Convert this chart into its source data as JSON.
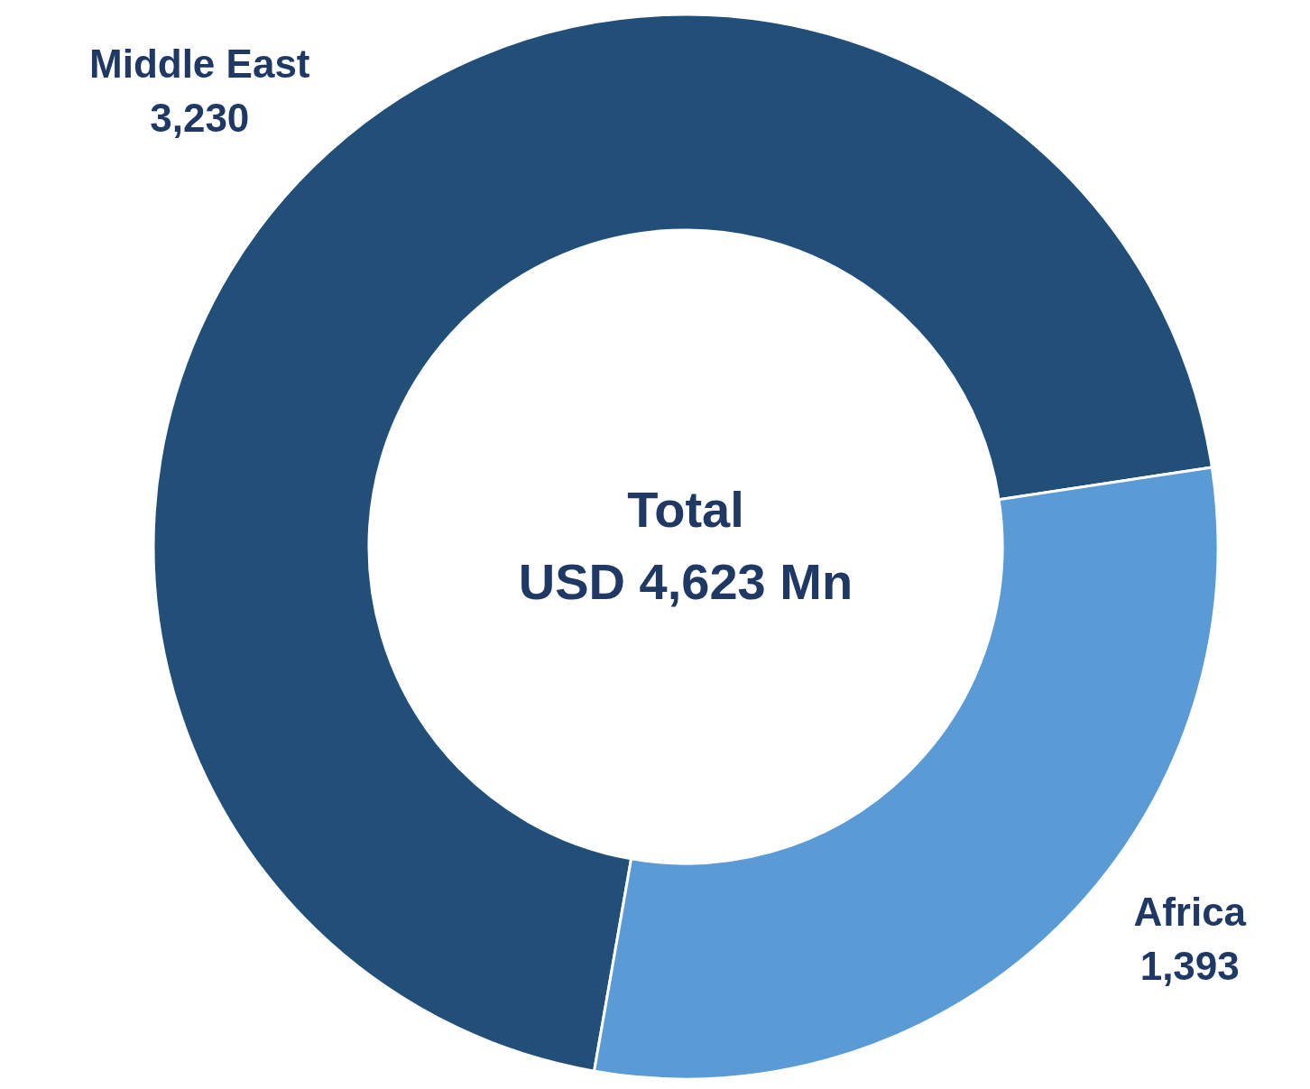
{
  "chart_data": {
    "type": "donut",
    "title": "Total",
    "subtitle": "USD 4,623 Mn",
    "categories": [
      "Middle East",
      "Africa"
    ],
    "values": [
      3230,
      1393
    ],
    "colors": [
      "#214f78",
      "#5b9bd5"
    ],
    "value_labels": [
      "3,230",
      "1,393"
    ]
  }
}
